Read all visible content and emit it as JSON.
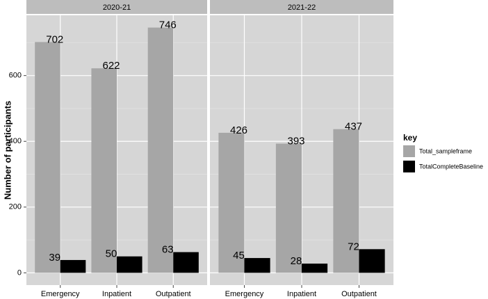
{
  "chart_data": {
    "type": "bar",
    "ylabel": "Number of participants",
    "facets": [
      "2020-21",
      "2021-22"
    ],
    "categories": [
      "Emergency",
      "Inpatient",
      "Outpatient"
    ],
    "legend_title": "key",
    "series": [
      {
        "name": "Total_sampleframe",
        "color": "#a6a6a6",
        "values": [
          [
            702,
            622,
            746
          ],
          [
            426,
            393,
            437
          ]
        ]
      },
      {
        "name": "TotalCompleteBaseline",
        "color": "#000000",
        "values": [
          [
            39,
            50,
            63
          ],
          [
            45,
            28,
            72
          ]
        ]
      }
    ],
    "ylim": [
      -37.3,
      783.3
    ],
    "yticks": [
      0,
      200,
      400,
      600
    ],
    "yminorticks": [
      100,
      300,
      500,
      700
    ],
    "grid": true,
    "legend": "right"
  }
}
